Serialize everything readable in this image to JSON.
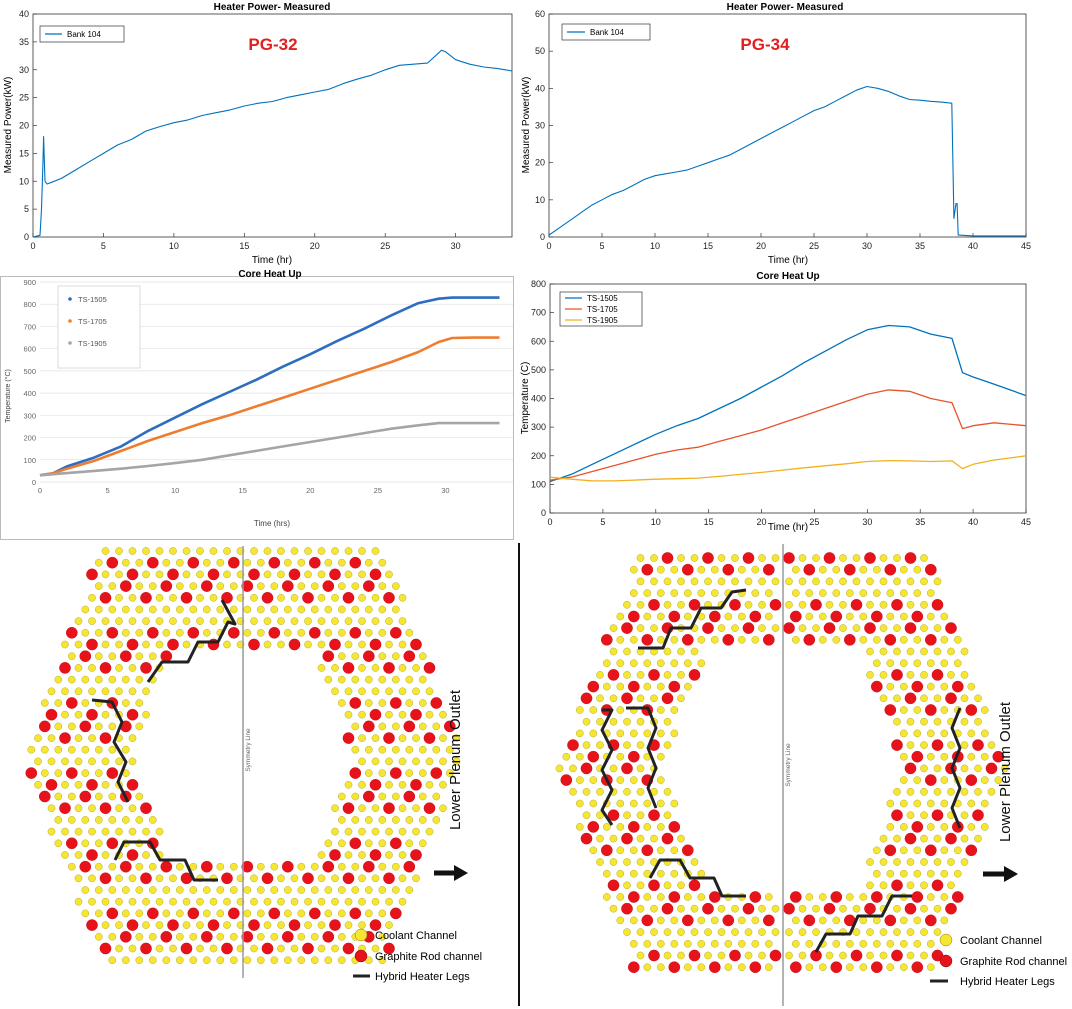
{
  "chart_data": [
    {
      "type": "line",
      "title": "Heater Power- Measured",
      "annotation": "PG-32",
      "xlabel": "Time (hr)",
      "ylabel": "Measured Power(kW)",
      "xlim": [
        0,
        34
      ],
      "ylim": [
        0,
        40
      ],
      "xticks": [
        0,
        5,
        10,
        15,
        20,
        25,
        30
      ],
      "yticks": [
        0,
        5,
        10,
        15,
        20,
        25,
        30,
        35,
        40
      ],
      "legend_position": "top-left",
      "series": [
        {
          "name": "Bank 104",
          "color": "#0072bd",
          "x": [
            0,
            0.5,
            0.6,
            0.7,
            0.75,
            0.85,
            1.0,
            1.5,
            2,
            3,
            4,
            5,
            6,
            7,
            8,
            9,
            10,
            11,
            12,
            13,
            14,
            15,
            16,
            17,
            18,
            19,
            20,
            21,
            22,
            23,
            24,
            25,
            26,
            27,
            28,
            29,
            29.3,
            30,
            31,
            32,
            33,
            34
          ],
          "y": [
            0,
            0.3,
            5,
            13,
            18,
            10,
            9.5,
            10,
            10.5,
            12,
            13.5,
            15,
            16.5,
            17.5,
            19,
            19.8,
            20.5,
            21,
            21.8,
            22.3,
            22.8,
            23.5,
            24,
            24.3,
            25,
            25.5,
            26,
            26.5,
            27.5,
            28.3,
            29,
            30,
            30.8,
            31,
            31.2,
            33.5,
            33.2,
            31.8,
            31,
            30.5,
            30.2,
            29.8
          ]
        }
      ]
    },
    {
      "type": "line",
      "title": "Heater Power- Measured",
      "annotation": "PG-34",
      "xlabel": "Time (hr)",
      "ylabel": "Measured Power(kW)",
      "xlim": [
        0,
        45
      ],
      "ylim": [
        0,
        60
      ],
      "xticks": [
        0,
        5,
        10,
        15,
        20,
        25,
        30,
        35,
        40,
        45
      ],
      "yticks": [
        0,
        10,
        20,
        30,
        40,
        50,
        60
      ],
      "legend_position": "top-left",
      "series": [
        {
          "name": "Bank 104",
          "color": "#0072bd",
          "x": [
            0,
            1,
            2,
            3,
            4,
            5,
            6,
            7,
            8,
            9,
            10,
            11,
            12,
            13,
            14,
            15,
            16,
            17,
            18,
            19,
            20,
            21,
            22,
            23,
            24,
            25,
            26,
            27,
            28,
            29,
            30,
            31,
            32,
            33,
            34,
            35,
            36,
            37,
            38,
            38.1,
            38.2,
            38.4,
            38.5,
            38.6,
            38.7,
            40,
            45
          ],
          "y": [
            0.5,
            2.5,
            4.5,
            6.5,
            8.5,
            10,
            11.5,
            12.5,
            14,
            15.5,
            16.5,
            17,
            17.5,
            18,
            19,
            20,
            21,
            22,
            23.5,
            25,
            26.5,
            28,
            29.5,
            31,
            32.5,
            34,
            35,
            36.5,
            38,
            39.5,
            40.5,
            40,
            39.2,
            38,
            37,
            36.8,
            36.5,
            36.3,
            36,
            20,
            5,
            9,
            9,
            0.5,
            0.5,
            0.3,
            0.3
          ]
        }
      ]
    },
    {
      "type": "line",
      "title": "Core Heat Up",
      "xlabel": "Time (hrs)",
      "ylabel": "Temperature (°C)",
      "xlim": [
        0,
        35
      ],
      "ylim": [
        0,
        900
      ],
      "xticks": [
        0,
        5,
        10,
        15,
        20,
        25,
        30
      ],
      "yticks": [
        0,
        100,
        200,
        300,
        400,
        500,
        600,
        700,
        800,
        900
      ],
      "legend_position": "top-left",
      "series": [
        {
          "name": "TS-1505",
          "color": "#2e6dbf",
          "x": [
            0,
            1,
            2,
            4,
            6,
            8,
            10,
            12,
            14,
            16,
            18,
            20,
            22,
            24,
            26,
            28,
            29.5,
            30.5,
            32,
            34
          ],
          "y": [
            30,
            40,
            70,
            110,
            160,
            230,
            290,
            350,
            405,
            460,
            520,
            575,
            635,
            690,
            750,
            805,
            825,
            830,
            830,
            830
          ]
        },
        {
          "name": "TS-1705",
          "color": "#ed7d31",
          "x": [
            0,
            1,
            2,
            4,
            6,
            8,
            10,
            12,
            14,
            16,
            18,
            20,
            22,
            24,
            26,
            28,
            29.5,
            30.5,
            32,
            34
          ],
          "y": [
            30,
            40,
            60,
            95,
            140,
            185,
            225,
            265,
            300,
            340,
            380,
            420,
            460,
            500,
            540,
            585,
            630,
            648,
            650,
            650
          ]
        },
        {
          "name": "TS-1905",
          "color": "#a5a5a5",
          "x": [
            0,
            2,
            4,
            6,
            8,
            10,
            12,
            14,
            16,
            18,
            20,
            22,
            24,
            26,
            28,
            29.5,
            30.5,
            32,
            34
          ],
          "y": [
            30,
            40,
            50,
            60,
            72,
            85,
            100,
            120,
            140,
            160,
            180,
            200,
            220,
            240,
            255,
            265,
            265,
            265,
            265
          ]
        }
      ]
    },
    {
      "type": "line",
      "title": "Core Heat Up",
      "xlabel": "Time (hr)",
      "ylabel": "Temperature (C)",
      "xlim": [
        0,
        45
      ],
      "ylim": [
        0,
        800
      ],
      "xticks": [
        0,
        5,
        10,
        15,
        20,
        25,
        30,
        35,
        40,
        45
      ],
      "yticks": [
        0,
        100,
        200,
        300,
        400,
        500,
        600,
        700,
        800
      ],
      "legend_position": "top-left",
      "series": [
        {
          "name": "TS-1505",
          "color": "#0072bd",
          "x": [
            0,
            2,
            4,
            6,
            8,
            10,
            12,
            14,
            16,
            18,
            20,
            22,
            24,
            26,
            28,
            30,
            32,
            34,
            36,
            38,
            39,
            40,
            42,
            45
          ],
          "y": [
            110,
            135,
            170,
            205,
            240,
            275,
            305,
            330,
            365,
            400,
            440,
            480,
            525,
            565,
            605,
            640,
            655,
            650,
            625,
            610,
            490,
            475,
            450,
            410
          ]
        },
        {
          "name": "TS-1705",
          "color": "#e8532b",
          "x": [
            0,
            2,
            4,
            6,
            8,
            10,
            12,
            14,
            16,
            18,
            20,
            22,
            24,
            26,
            28,
            30,
            32,
            34,
            36,
            38,
            39,
            40,
            42,
            45
          ],
          "y": [
            115,
            125,
            145,
            165,
            185,
            205,
            220,
            230,
            250,
            270,
            290,
            315,
            340,
            365,
            390,
            415,
            430,
            425,
            400,
            385,
            295,
            305,
            315,
            305
          ]
        },
        {
          "name": "TS-1905",
          "color": "#f2b01e",
          "x": [
            0,
            2,
            4,
            6,
            8,
            10,
            12,
            14,
            16,
            18,
            20,
            22,
            24,
            26,
            28,
            30,
            32,
            34,
            36,
            38,
            39,
            40,
            42,
            45
          ],
          "y": [
            125,
            118,
            112,
            112,
            115,
            118,
            120,
            122,
            128,
            135,
            142,
            150,
            158,
            165,
            172,
            180,
            183,
            182,
            180,
            182,
            155,
            170,
            185,
            200
          ]
        }
      ]
    }
  ],
  "core_maps": [
    {
      "symmetry_label": "Symmetry Line",
      "outlet_label": "Lower Plenum Outlet",
      "legend": {
        "coolant": "Coolant Channel",
        "graphite": "Graphite Rod channel",
        "heater": "Hybrid Heater Legs"
      }
    },
    {
      "symmetry_label": "Symmetry Line",
      "outlet_label": "Lower Plenum Outlet",
      "legend": {
        "coolant": "Coolant Channel",
        "graphite": "Graphite Rod channel",
        "heater": "Hybrid Heater Legs"
      }
    }
  ],
  "colors": {
    "coolant": "#f5e632",
    "graphite": "#e8121a",
    "heater": "#222222",
    "annotation": "#e02020"
  }
}
